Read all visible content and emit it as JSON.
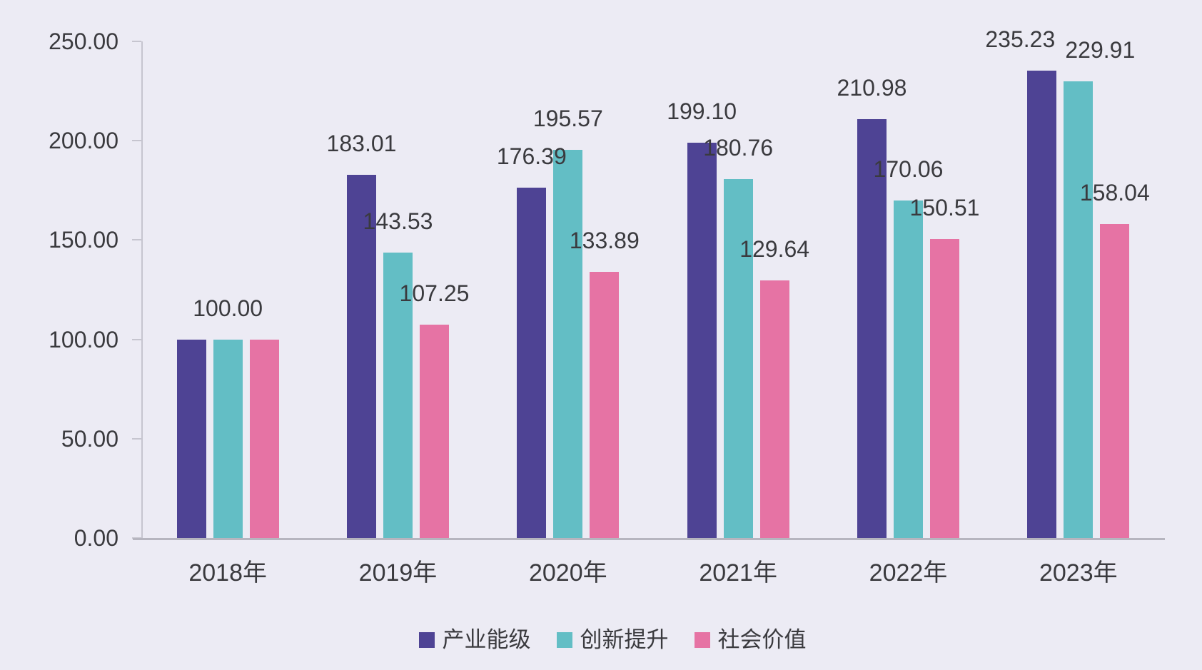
{
  "colors": {
    "background": "#ECEBF4",
    "text": "#3A3A3E",
    "axis": "#C6C5CF",
    "baseline": "#B6B5BF",
    "series1": "#4E4394",
    "series2": "#63BEC5",
    "series3": "#E673A4"
  },
  "chart_data": {
    "type": "bar",
    "title": "",
    "xlabel": "",
    "ylabel": "",
    "categories": [
      "2018年",
      "2019年",
      "2020年",
      "2021年",
      "2022年",
      "2023年"
    ],
    "series": [
      {
        "id": "industry-level",
        "name": "产业能级",
        "color": "#4E4394",
        "values": [
          100.0,
          183.01,
          176.39,
          199.1,
          210.98,
          235.23
        ]
      },
      {
        "id": "innovation-boost",
        "name": "创新提升",
        "color": "#63BEC5",
        "values": [
          100.0,
          143.53,
          195.57,
          180.76,
          170.06,
          229.91
        ]
      },
      {
        "id": "social-value",
        "name": "社会价值",
        "color": "#E673A4",
        "values": [
          100.0,
          107.25,
          133.89,
          129.64,
          150.51,
          158.04
        ]
      }
    ],
    "data_labels_shown": true,
    "value_label_decimals": 2,
    "ylim": [
      0,
      250
    ],
    "ytick_labels": [
      "250.00",
      "200.00",
      "150.00",
      "100.00",
      "50.00",
      "0.00"
    ],
    "ytick_values": [
      250,
      200,
      150,
      100,
      50,
      0
    ],
    "grid": false,
    "legend_position": "bottom"
  }
}
